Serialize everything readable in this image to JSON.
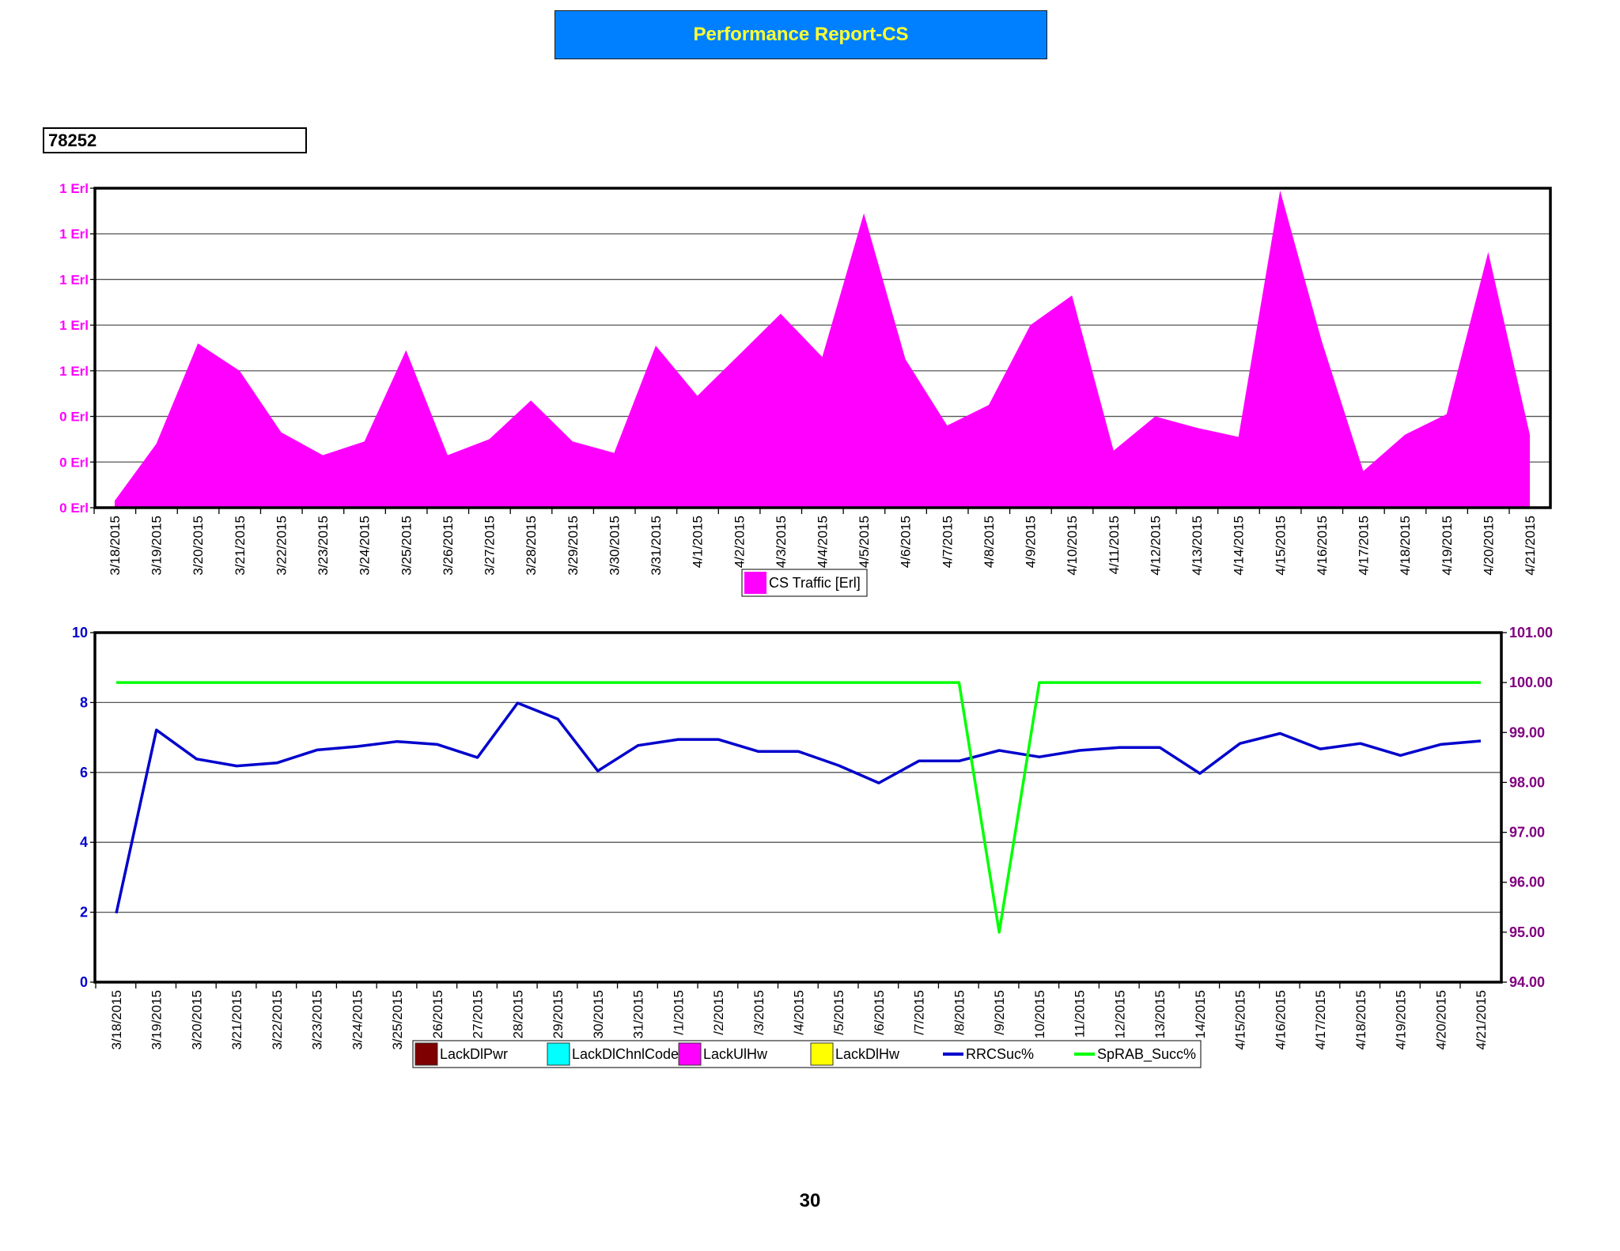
{
  "header": {
    "title": "Performance Report-CS"
  },
  "site": {
    "id": "78252"
  },
  "footer": {
    "page_number": "30"
  },
  "chart_data": [
    {
      "type": "area",
      "x": [
        "3/18/2015",
        "3/19/2015",
        "3/20/2015",
        "3/21/2015",
        "3/22/2015",
        "3/23/2015",
        "3/24/2015",
        "3/25/2015",
        "3/26/2015",
        "3/27/2015",
        "3/28/2015",
        "3/29/2015",
        "3/30/2015",
        "3/31/2015",
        "4/1/2015",
        "4/2/2015",
        "4/3/2015",
        "4/4/2015",
        "4/5/2015",
        "4/6/2015",
        "4/7/2015",
        "4/8/2015",
        "4/9/2015",
        "4/10/2015",
        "4/11/2015",
        "4/12/2015",
        "4/13/2015",
        "4/14/2015",
        "4/15/2015",
        "4/16/2015",
        "4/17/2015",
        "4/18/2015",
        "4/19/2015",
        "4/20/2015",
        "4/21/2015"
      ],
      "x_tick_labels": [
        "3/18/2015",
        "3/19/2015",
        "3/20/2015",
        "3/21/2015",
        "3/22/2015",
        "3/23/2015",
        "3/24/2015",
        "3/25/2015",
        "3/26/2015",
        "3/27/2015",
        "3/28/2015",
        "3/29/2015",
        "3/30/2015",
        "3/31/2015",
        "4/1/2015",
        "4/2/2015",
        "4/3/2015",
        "4/4/2015",
        "4/5/2015",
        "4/6/2015",
        "4/7/2015",
        "4/8/2015",
        "4/9/2015",
        "4/10/2015",
        "4/11/2015",
        "4/12/2015",
        "4/13/2015",
        "4/14/2015",
        "4/15/2015",
        "4/16/2015",
        "4/17/2015",
        "4/18/2015",
        "4/19/2015",
        "4/20/2015",
        "4/21/2015"
      ],
      "series": [
        {
          "name": "CS Traffic [Erl]",
          "color": "#ff00ff",
          "values": [
            0.03,
            0.28,
            0.72,
            0.6,
            0.33,
            0.23,
            0.29,
            0.69,
            0.23,
            0.3,
            0.47,
            0.29,
            0.24,
            0.71,
            0.49,
            0.67,
            0.85,
            0.66,
            1.29,
            0.65,
            0.36,
            0.45,
            0.8,
            0.93,
            0.25,
            0.4,
            0.35,
            0.31,
            1.39,
            0.73,
            0.16,
            0.32,
            0.41,
            1.12,
            0.32
          ]
        }
      ],
      "y_tick_labels": [
        "0 Erl",
        "0 Erl",
        "0 Erl",
        "1 Erl",
        "1 Erl",
        "1 Erl",
        "1 Erl",
        "1 Erl"
      ],
      "ylim": [
        0,
        1.4
      ],
      "grid": true,
      "legend": "bottom-center"
    },
    {
      "type": "line",
      "x": [
        "3/18/2015",
        "3/19/2015",
        "3/20/2015",
        "3/21/2015",
        "3/22/2015",
        "3/23/2015",
        "3/24/2015",
        "3/25/2015",
        "3/26/2015",
        "3/27/2015",
        "3/28/2015",
        "3/29/2015",
        "3/30/2015",
        "3/31/2015",
        "4/1/2015",
        "4/2/2015",
        "4/3/2015",
        "4/4/2015",
        "4/5/2015",
        "4/6/2015",
        "4/7/2015",
        "4/8/2015",
        "4/9/2015",
        "4/10/2015",
        "4/11/2015",
        "4/12/2015",
        "4/13/2015",
        "4/14/2015",
        "4/15/2015",
        "4/16/2015",
        "4/17/2015",
        "4/18/2015",
        "4/19/2015",
        "4/20/2015",
        "4/21/2015"
      ],
      "x_tick_labels": [
        "3/18/2015",
        "3/19/2015",
        "3/20/2015",
        "3/21/2015",
        "3/22/2015",
        "3/23/2015",
        "3/24/2015",
        "3/25/2015",
        "26/2015",
        "27/2015",
        "28/2015",
        "29/2015",
        "30/2015",
        "31/2015",
        "/1/2015",
        "/2/2015",
        "/3/2015",
        "/4/2015",
        "/5/2015",
        "/6/2015",
        "/7/2015",
        "/8/2015",
        "/9/2015",
        "10/2015",
        "11/2015",
        "12/2015",
        "13/2015",
        "14/2015",
        "4/15/2015",
        "4/16/2015",
        "4/17/2015",
        "4/18/2015",
        "4/19/2015",
        "4/20/2015",
        "4/21/2015"
      ],
      "left_axis": {
        "ylim": [
          0,
          10
        ],
        "ticks": [
          "0",
          "2",
          "4",
          "6",
          "8",
          "10"
        ],
        "color": "#0000cc"
      },
      "right_axis": {
        "ylim": [
          94,
          101
        ],
        "ticks": [
          "94.00",
          "95.00",
          "96.00",
          "97.00",
          "98.00",
          "99.00",
          "100.00",
          "101.00"
        ],
        "color": "#800080"
      },
      "legend_entries": [
        {
          "name": "LackDlPwr",
          "color": "#7f0000",
          "marker": "box"
        },
        {
          "name": "LackDlChnlCode",
          "color": "#00ffff",
          "marker": "box"
        },
        {
          "name": "LackUlHw",
          "color": "#ff00ff",
          "marker": "box"
        },
        {
          "name": "LackDlHw",
          "color": "#ffff00",
          "marker": "box"
        },
        {
          "name": "RRCSuc%",
          "color": "#0000cc",
          "marker": "line"
        },
        {
          "name": "SpRAB_Succ%",
          "color": "#00ff00",
          "marker": "line"
        }
      ],
      "series": [
        {
          "name": "RRCSuc%",
          "axis": "right",
          "color": "#0000cc",
          "values": [
            95.38,
            99.05,
            98.47,
            98.33,
            98.39,
            98.65,
            98.72,
            98.82,
            98.76,
            98.5,
            99.59,
            99.27,
            98.23,
            98.74,
            98.86,
            98.86,
            98.62,
            98.62,
            98.34,
            97.99,
            98.43,
            98.43,
            98.64,
            98.51,
            98.64,
            98.7,
            98.7,
            98.18,
            98.78,
            98.98,
            98.67,
            98.78,
            98.54,
            98.76,
            98.83
          ]
        },
        {
          "name": "SpRAB_Succ%",
          "axis": "right",
          "color": "#00ff00",
          "values": [
            100,
            100,
            100,
            100,
            100,
            100,
            100,
            100,
            100,
            100,
            100,
            100,
            100,
            100,
            100,
            100,
            100,
            100,
            100,
            100,
            100,
            100,
            95.0,
            100,
            100,
            100,
            100,
            100,
            100,
            100,
            100,
            100,
            100,
            100,
            100
          ]
        }
      ],
      "grid": true,
      "legend": "bottom-center"
    }
  ]
}
